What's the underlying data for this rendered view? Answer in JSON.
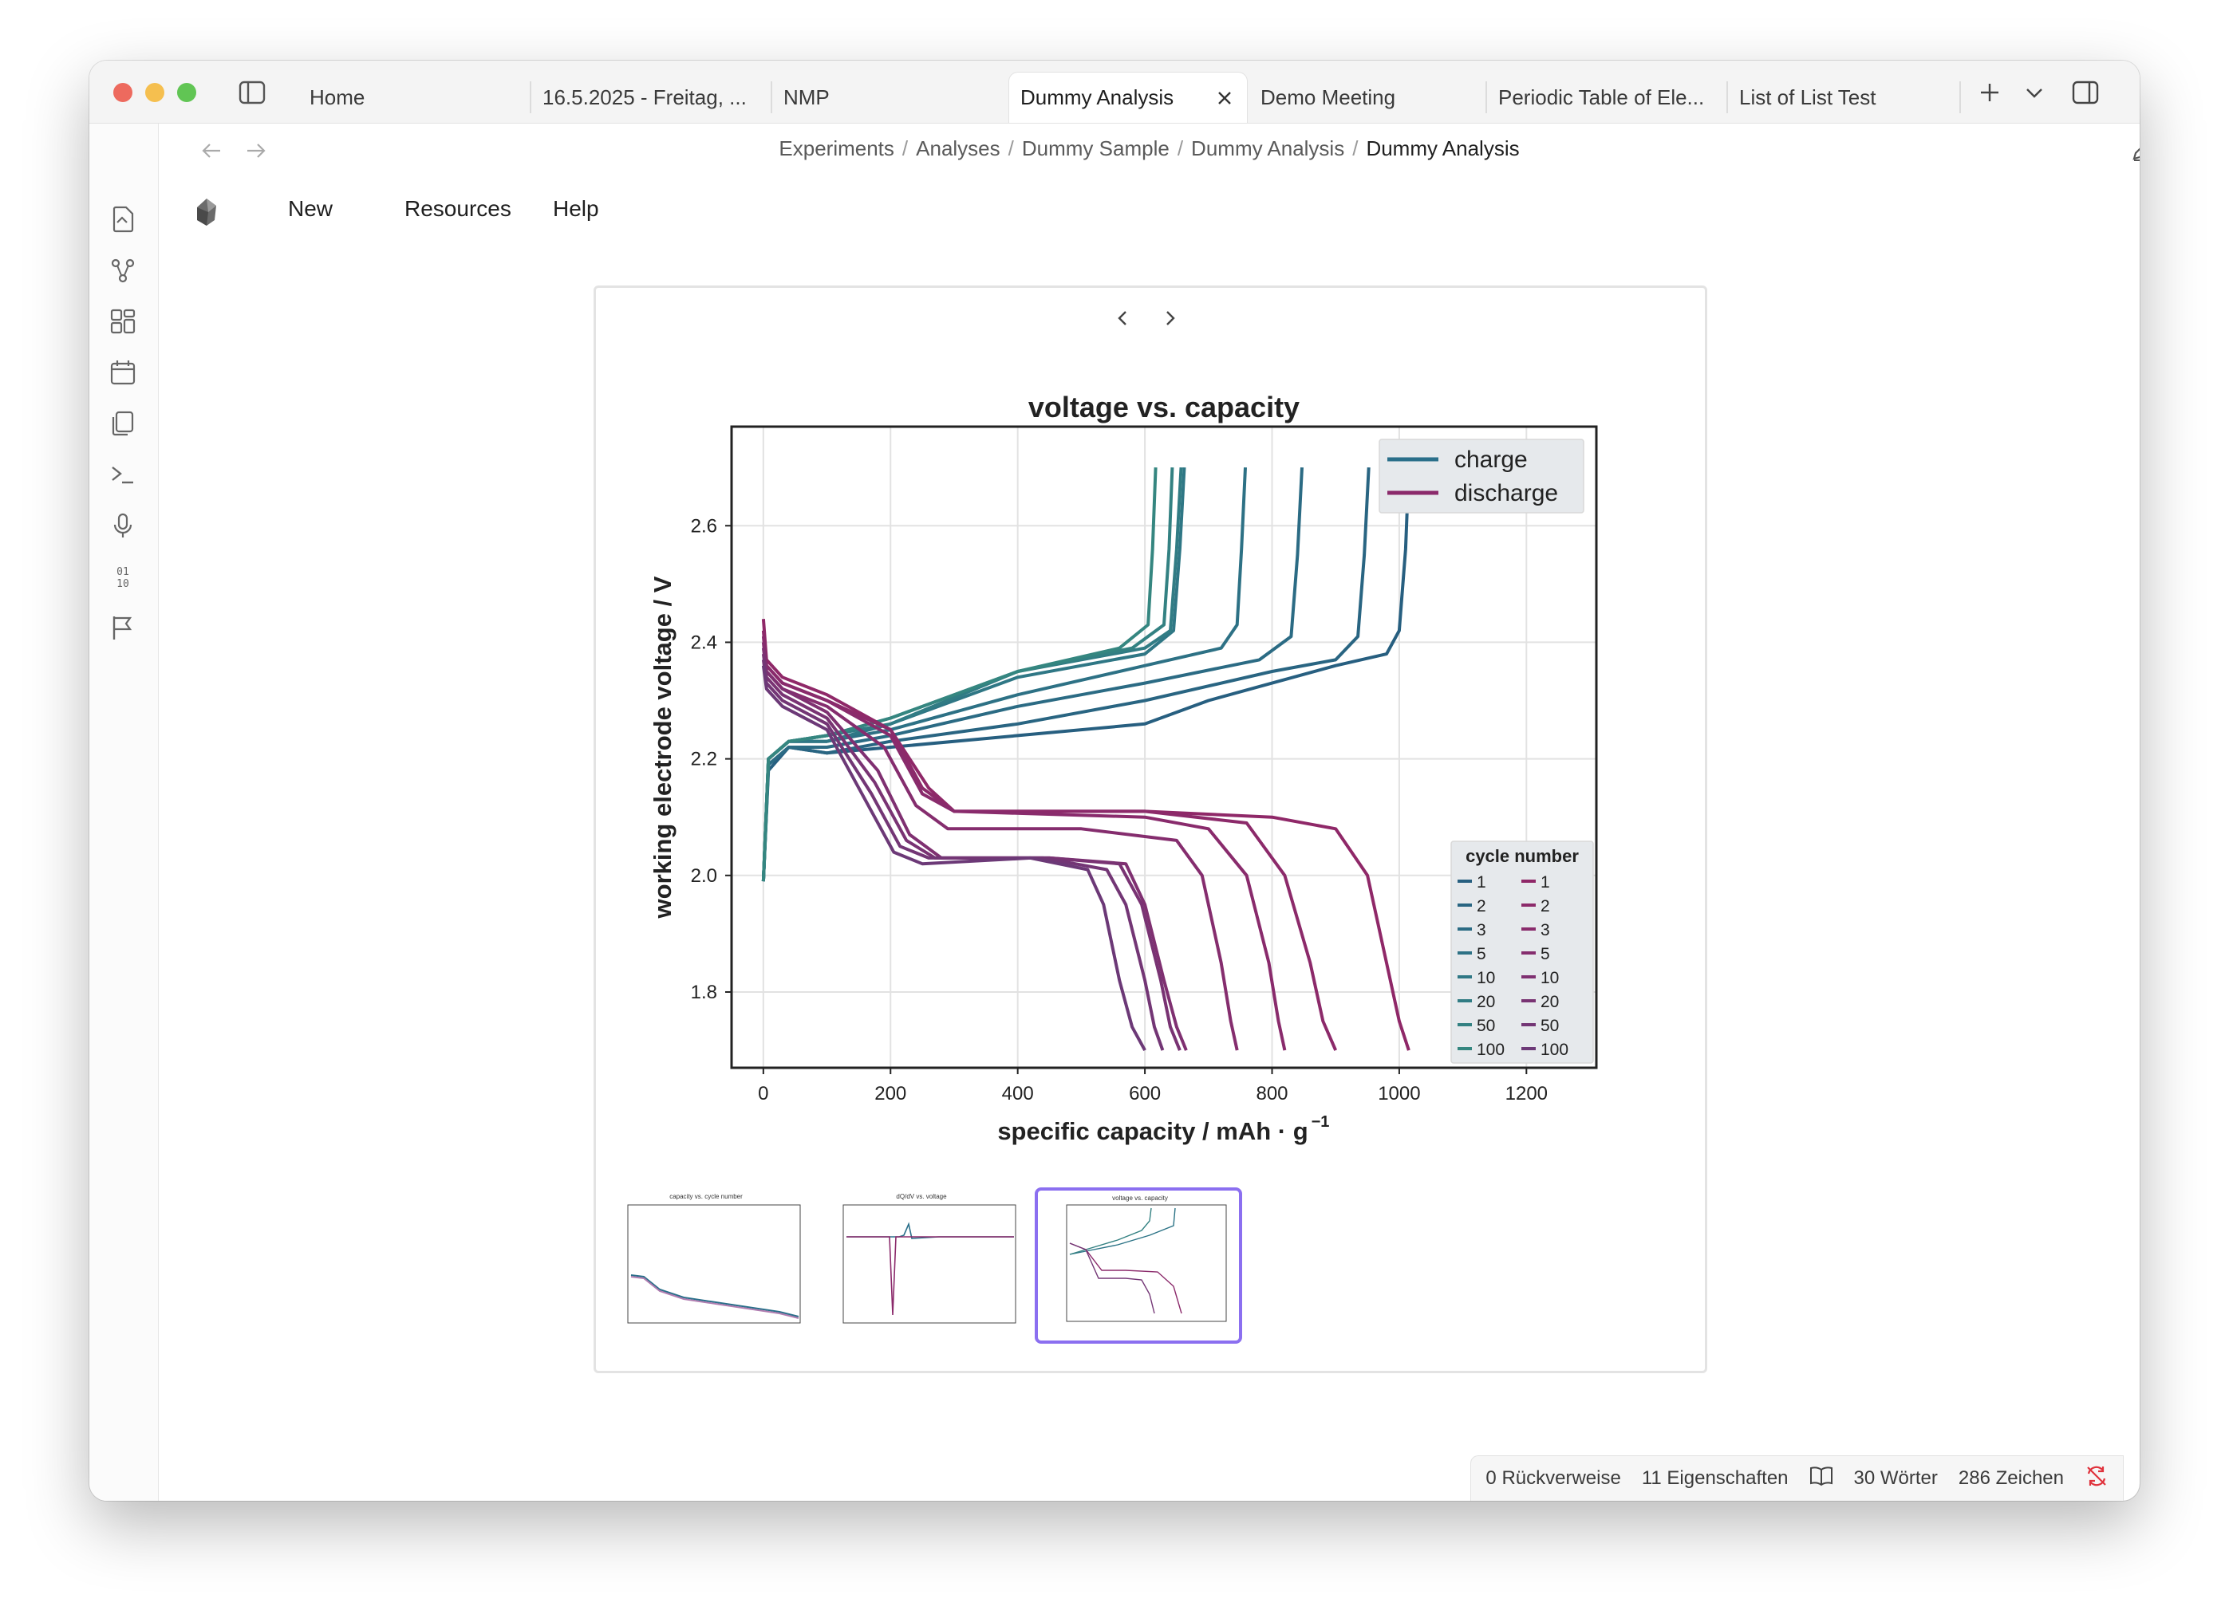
{
  "tabs": [
    {
      "label": "Home",
      "active": false
    },
    {
      "label": "16.5.2025 - Freitag, ...",
      "active": false
    },
    {
      "label": "NMP",
      "active": false
    },
    {
      "label": "Dummy Analysis",
      "active": true
    },
    {
      "label": "Demo Meeting",
      "active": false
    },
    {
      "label": "Periodic Table of Ele...",
      "active": false
    },
    {
      "label": "List of List Test",
      "active": false
    }
  ],
  "breadcrumb": {
    "items": [
      "Experiments",
      "Analyses",
      "Dummy Sample",
      "Dummy Analysis"
    ],
    "current": "Dummy Analysis",
    "separator": "/"
  },
  "menu": {
    "new": "New",
    "resources": "Resources",
    "help": "Help"
  },
  "ribbon_icons": [
    "open-note-icon",
    "graph-view-icon",
    "canvas-icon",
    "calendar-icon",
    "templates-icon",
    "terminal-icon",
    "microphone-icon",
    "binary-icon",
    "flag-icon"
  ],
  "status": {
    "backlinks": "0 Rückverweise",
    "properties": "11 Eigenschaften",
    "words": "30 Wörter",
    "chars": "286 Zeichen"
  },
  "colors": {
    "accent": "#8b6ff0",
    "charge": "#2a6f8a",
    "discharge": "#8b2a6b",
    "sync_error": "#e0323c"
  },
  "chart_data": {
    "type": "line",
    "title": "voltage vs. capacity",
    "xlabel": "specific capacity / mAh · g",
    "xlabel_superscript": "−1",
    "ylabel": "working electrode voltage / V",
    "xlim": [
      -50,
      1310
    ],
    "ylim": [
      1.67,
      2.77
    ],
    "xticks": [
      0,
      200,
      400,
      600,
      800,
      1000,
      1200
    ],
    "yticks": [
      1.8,
      2.0,
      2.2,
      2.4,
      2.6
    ],
    "ytick_labels": [
      "1.8",
      "2.0",
      "2.2",
      "2.4",
      "2.6"
    ],
    "grid": true,
    "legend": {
      "position": "top-right",
      "entries": [
        "charge",
        "discharge"
      ]
    },
    "cycle_legend": {
      "title": "cycle number",
      "position": "lower-right",
      "cycles": [
        "1",
        "2",
        "3",
        "5",
        "10",
        "20",
        "50",
        "100"
      ]
    },
    "series": [
      {
        "name": "charge",
        "cycle": "1",
        "color": "#275f80",
        "points": [
          [
            0,
            1.99
          ],
          [
            8,
            2.18
          ],
          [
            40,
            2.22
          ],
          [
            100,
            2.21
          ],
          [
            200,
            2.22
          ],
          [
            400,
            2.24
          ],
          [
            600,
            2.26
          ],
          [
            700,
            2.3
          ],
          [
            800,
            2.33
          ],
          [
            900,
            2.36
          ],
          [
            980,
            2.38
          ],
          [
            1000,
            2.42
          ],
          [
            1010,
            2.56
          ],
          [
            1015,
            2.7
          ]
        ]
      },
      {
        "name": "charge",
        "cycle": "2",
        "color": "#296582",
        "points": [
          [
            0,
            1.99
          ],
          [
            8,
            2.19
          ],
          [
            40,
            2.22
          ],
          [
            100,
            2.21
          ],
          [
            200,
            2.23
          ],
          [
            400,
            2.26
          ],
          [
            600,
            2.3
          ],
          [
            800,
            2.35
          ],
          [
            900,
            2.37
          ],
          [
            935,
            2.41
          ],
          [
            945,
            2.55
          ],
          [
            952,
            2.7
          ]
        ]
      },
      {
        "name": "charge",
        "cycle": "3",
        "color": "#2b6b84",
        "points": [
          [
            0,
            1.99
          ],
          [
            8,
            2.19
          ],
          [
            40,
            2.22
          ],
          [
            100,
            2.22
          ],
          [
            200,
            2.24
          ],
          [
            400,
            2.29
          ],
          [
            600,
            2.33
          ],
          [
            780,
            2.37
          ],
          [
            830,
            2.41
          ],
          [
            840,
            2.55
          ],
          [
            847,
            2.7
          ]
        ]
      },
      {
        "name": "charge",
        "cycle": "5",
        "color": "#2d7185",
        "points": [
          [
            0,
            1.99
          ],
          [
            8,
            2.2
          ],
          [
            40,
            2.23
          ],
          [
            100,
            2.23
          ],
          [
            200,
            2.25
          ],
          [
            400,
            2.31
          ],
          [
            600,
            2.36
          ],
          [
            720,
            2.39
          ],
          [
            745,
            2.43
          ],
          [
            752,
            2.56
          ],
          [
            758,
            2.7
          ]
        ]
      },
      {
        "name": "charge",
        "cycle": "10",
        "color": "#2f7785",
        "points": [
          [
            0,
            1.99
          ],
          [
            8,
            2.2
          ],
          [
            40,
            2.23
          ],
          [
            100,
            2.23
          ],
          [
            200,
            2.26
          ],
          [
            400,
            2.34
          ],
          [
            600,
            2.38
          ],
          [
            645,
            2.42
          ],
          [
            655,
            2.56
          ],
          [
            662,
            2.7
          ]
        ]
      },
      {
        "name": "charge",
        "cycle": "20",
        "color": "#317c84",
        "points": [
          [
            0,
            1.99
          ],
          [
            8,
            2.2
          ],
          [
            40,
            2.23
          ],
          [
            100,
            2.24
          ],
          [
            200,
            2.26
          ],
          [
            400,
            2.35
          ],
          [
            600,
            2.39
          ],
          [
            640,
            2.42
          ],
          [
            650,
            2.56
          ],
          [
            657,
            2.7
          ]
        ]
      },
      {
        "name": "charge",
        "cycle": "50",
        "color": "#338182",
        "points": [
          [
            0,
            1.99
          ],
          [
            8,
            2.2
          ],
          [
            40,
            2.23
          ],
          [
            100,
            2.24
          ],
          [
            200,
            2.27
          ],
          [
            400,
            2.35
          ],
          [
            580,
            2.39
          ],
          [
            630,
            2.43
          ],
          [
            638,
            2.56
          ],
          [
            643,
            2.7
          ]
        ]
      },
      {
        "name": "charge",
        "cycle": "100",
        "color": "#358680",
        "points": [
          [
            0,
            1.99
          ],
          [
            8,
            2.2
          ],
          [
            40,
            2.23
          ],
          [
            100,
            2.24
          ],
          [
            200,
            2.27
          ],
          [
            400,
            2.35
          ],
          [
            560,
            2.39
          ],
          [
            605,
            2.43
          ],
          [
            612,
            2.56
          ],
          [
            617,
            2.7
          ]
        ]
      },
      {
        "name": "discharge",
        "cycle": "1",
        "color": "#8f2868",
        "points": [
          [
            0,
            2.44
          ],
          [
            5,
            2.37
          ],
          [
            30,
            2.34
          ],
          [
            100,
            2.31
          ],
          [
            200,
            2.25
          ],
          [
            260,
            2.15
          ],
          [
            300,
            2.11
          ],
          [
            350,
            2.11
          ],
          [
            600,
            2.11
          ],
          [
            800,
            2.1
          ],
          [
            900,
            2.08
          ],
          [
            950,
            2.0
          ],
          [
            980,
            1.85
          ],
          [
            1000,
            1.75
          ],
          [
            1015,
            1.7
          ]
        ]
      },
      {
        "name": "discharge",
        "cycle": "2",
        "color": "#8c2a6a",
        "points": [
          [
            0,
            2.42
          ],
          [
            5,
            2.36
          ],
          [
            30,
            2.33
          ],
          [
            100,
            2.3
          ],
          [
            200,
            2.25
          ],
          [
            250,
            2.15
          ],
          [
            300,
            2.11
          ],
          [
            600,
            2.11
          ],
          [
            760,
            2.09
          ],
          [
            820,
            2.0
          ],
          [
            860,
            1.85
          ],
          [
            880,
            1.75
          ],
          [
            900,
            1.7
          ]
        ]
      },
      {
        "name": "discharge",
        "cycle": "3",
        "color": "#892b6c",
        "points": [
          [
            0,
            2.41
          ],
          [
            5,
            2.36
          ],
          [
            30,
            2.33
          ],
          [
            100,
            2.3
          ],
          [
            200,
            2.24
          ],
          [
            250,
            2.14
          ],
          [
            300,
            2.11
          ],
          [
            600,
            2.1
          ],
          [
            700,
            2.08
          ],
          [
            760,
            2.0
          ],
          [
            795,
            1.85
          ],
          [
            810,
            1.75
          ],
          [
            820,
            1.7
          ]
        ]
      },
      {
        "name": "discharge",
        "cycle": "5",
        "color": "#852d6e",
        "points": [
          [
            0,
            2.4
          ],
          [
            5,
            2.35
          ],
          [
            30,
            2.32
          ],
          [
            100,
            2.29
          ],
          [
            190,
            2.22
          ],
          [
            240,
            2.12
          ],
          [
            290,
            2.08
          ],
          [
            500,
            2.08
          ],
          [
            650,
            2.06
          ],
          [
            690,
            2.0
          ],
          [
            720,
            1.85
          ],
          [
            735,
            1.75
          ],
          [
            745,
            1.7
          ]
        ]
      },
      {
        "name": "discharge",
        "cycle": "10",
        "color": "#7f3071",
        "points": [
          [
            0,
            2.39
          ],
          [
            5,
            2.35
          ],
          [
            30,
            2.32
          ],
          [
            100,
            2.28
          ],
          [
            180,
            2.18
          ],
          [
            230,
            2.07
          ],
          [
            280,
            2.03
          ],
          [
            450,
            2.03
          ],
          [
            570,
            2.02
          ],
          [
            600,
            1.95
          ],
          [
            630,
            1.82
          ],
          [
            650,
            1.74
          ],
          [
            665,
            1.7
          ]
        ]
      },
      {
        "name": "discharge",
        "cycle": "20",
        "color": "#793373",
        "points": [
          [
            0,
            2.38
          ],
          [
            5,
            2.34
          ],
          [
            30,
            2.31
          ],
          [
            100,
            2.27
          ],
          [
            175,
            2.16
          ],
          [
            225,
            2.06
          ],
          [
            270,
            2.03
          ],
          [
            450,
            2.03
          ],
          [
            560,
            2.02
          ],
          [
            595,
            1.95
          ],
          [
            625,
            1.82
          ],
          [
            640,
            1.74
          ],
          [
            655,
            1.7
          ]
        ]
      },
      {
        "name": "discharge",
        "cycle": "50",
        "color": "#733675",
        "points": [
          [
            0,
            2.37
          ],
          [
            5,
            2.33
          ],
          [
            30,
            2.3
          ],
          [
            100,
            2.26
          ],
          [
            170,
            2.14
          ],
          [
            215,
            2.05
          ],
          [
            260,
            2.03
          ],
          [
            440,
            2.03
          ],
          [
            540,
            2.01
          ],
          [
            570,
            1.95
          ],
          [
            600,
            1.82
          ],
          [
            615,
            1.74
          ],
          [
            628,
            1.7
          ]
        ]
      },
      {
        "name": "discharge",
        "cycle": "100",
        "color": "#6c3977",
        "points": [
          [
            0,
            2.36
          ],
          [
            5,
            2.32
          ],
          [
            30,
            2.29
          ],
          [
            100,
            2.25
          ],
          [
            165,
            2.12
          ],
          [
            205,
            2.04
          ],
          [
            250,
            2.02
          ],
          [
            420,
            2.03
          ],
          [
            510,
            2.01
          ],
          [
            535,
            1.95
          ],
          [
            560,
            1.82
          ],
          [
            580,
            1.74
          ],
          [
            600,
            1.7
          ]
        ]
      }
    ]
  },
  "thumbnails": [
    {
      "title": "capacity vs. cycle number",
      "selected": false
    },
    {
      "title": "dQ/dV vs. voltage",
      "selected": false
    },
    {
      "title": "voltage vs. capacity",
      "selected": true
    }
  ]
}
